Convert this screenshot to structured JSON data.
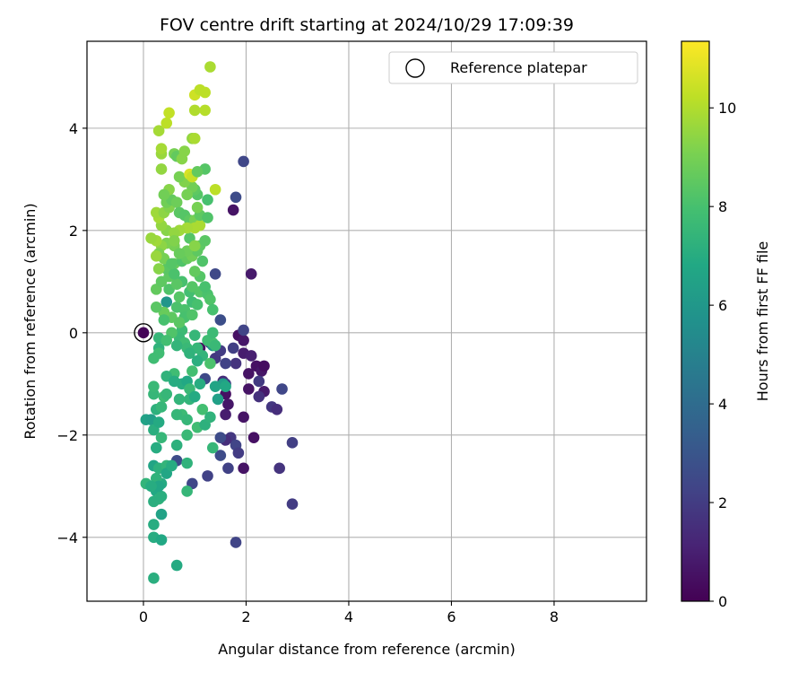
{
  "chart_data": {
    "type": "scatter",
    "title": "FOV centre drift starting at 2024/10/29 17:09:39",
    "xlabel": "Angular distance from reference (arcmin)",
    "ylabel": "Rotation from reference (arcmin)",
    "xlim": [
      -1.1,
      9.8
    ],
    "ylim": [
      -5.25,
      5.7
    ],
    "xticks": [
      0,
      2,
      4,
      6,
      8
    ],
    "yticks": [
      -4,
      -2,
      0,
      2,
      4
    ],
    "grid": true,
    "colorbar": {
      "label": "Hours from first FF file",
      "colormap": "viridis",
      "range": [
        0,
        11.35
      ],
      "ticks": [
        0,
        2,
        4,
        6,
        8,
        10
      ]
    },
    "legend": {
      "position": "top-right",
      "entries": [
        {
          "label": "Reference platepar",
          "marker": "open-circle"
        }
      ]
    },
    "reference_point": {
      "x": 0,
      "y": 0
    },
    "points": [
      [
        0.0,
        0.0,
        0.1
      ],
      [
        1.75,
        2.4,
        0.6
      ],
      [
        2.1,
        1.15,
        0.8
      ],
      [
        1.85,
        -0.05,
        0.5
      ],
      [
        1.95,
        -0.15,
        0.7
      ],
      [
        1.95,
        -0.4,
        0.9
      ],
      [
        2.1,
        -0.45,
        1.0
      ],
      [
        2.05,
        -0.8,
        0.6
      ],
      [
        2.2,
        -0.65,
        0.5
      ],
      [
        2.3,
        -0.75,
        0.7
      ],
      [
        2.35,
        -0.65,
        0.4
      ],
      [
        2.05,
        -1.1,
        0.6
      ],
      [
        2.35,
        -1.15,
        0.8
      ],
      [
        1.6,
        -1.2,
        0.5
      ],
      [
        1.65,
        -1.4,
        0.7
      ],
      [
        1.95,
        -1.65,
        0.6
      ],
      [
        2.15,
        -2.05,
        0.5
      ],
      [
        1.95,
        -2.65,
        0.6
      ],
      [
        1.6,
        -1.6,
        0.9
      ],
      [
        1.1,
        -0.3,
        0.4
      ],
      [
        1.3,
        -0.2,
        1.5
      ],
      [
        1.4,
        -0.5,
        1.8
      ],
      [
        1.5,
        -0.35,
        2.0
      ],
      [
        1.75,
        -0.3,
        2.1
      ],
      [
        1.8,
        -0.6,
        1.7
      ],
      [
        1.6,
        -0.6,
        2.2
      ],
      [
        1.55,
        -0.95,
        1.4
      ],
      [
        1.2,
        -0.9,
        2.5
      ],
      [
        1.6,
        -1.0,
        2.0
      ],
      [
        2.25,
        -1.25,
        1.6
      ],
      [
        2.5,
        -1.45,
        1.8
      ],
      [
        2.6,
        -1.5,
        1.5
      ],
      [
        2.7,
        -1.1,
        2.4
      ],
      [
        1.7,
        -2.05,
        1.8
      ],
      [
        1.6,
        -2.1,
        1.5
      ],
      [
        1.8,
        -2.2,
        2.3
      ],
      [
        1.5,
        -2.4,
        2.6
      ],
      [
        1.65,
        -2.65,
        2.2
      ],
      [
        1.85,
        -2.35,
        2.0
      ],
      [
        1.25,
        -2.8,
        2.2
      ],
      [
        0.95,
        -2.95,
        2.4
      ],
      [
        2.9,
        -2.15,
        2.1
      ],
      [
        2.9,
        -3.35,
        2.0
      ],
      [
        2.65,
        -2.65,
        1.7
      ],
      [
        1.8,
        -4.1,
        2.3
      ],
      [
        0.65,
        -2.5,
        2.6
      ],
      [
        1.4,
        1.15,
        2.5
      ],
      [
        1.95,
        3.35,
        2.4
      ],
      [
        1.8,
        2.65,
        2.6
      ],
      [
        1.5,
        0.25,
        2.7
      ],
      [
        1.95,
        0.05,
        2.3
      ],
      [
        1.5,
        -2.05,
        2.6
      ],
      [
        2.25,
        -0.95,
        1.9
      ],
      [
        1.35,
        -0.25,
        5.8
      ],
      [
        1.55,
        -1.0,
        6.3
      ],
      [
        0.45,
        0.6,
        5.9
      ],
      [
        0.05,
        -1.7,
        6.5
      ],
      [
        0.15,
        -1.7,
        6.3
      ],
      [
        0.2,
        -1.9,
        7.1
      ],
      [
        0.25,
        -2.25,
        7.0
      ],
      [
        0.2,
        -2.6,
        6.6
      ],
      [
        0.3,
        -2.65,
        7.2
      ],
      [
        0.35,
        -2.95,
        6.9
      ],
      [
        0.25,
        -3.1,
        6.8
      ],
      [
        0.3,
        -3.25,
        7.3
      ],
      [
        0.2,
        -3.3,
        7.1
      ],
      [
        0.35,
        -3.55,
        6.5
      ],
      [
        0.2,
        -3.75,
        7.0
      ],
      [
        0.2,
        -4.0,
        7.0
      ],
      [
        0.35,
        -4.05,
        6.8
      ],
      [
        0.2,
        -4.8,
        7.1
      ],
      [
        0.65,
        -4.55,
        6.9
      ],
      [
        0.45,
        -2.6,
        7.4
      ],
      [
        0.65,
        -2.2,
        7.2
      ],
      [
        0.85,
        -2.55,
        7.3
      ],
      [
        0.35,
        -2.05,
        7.5
      ],
      [
        0.3,
        -1.75,
        6.9
      ],
      [
        0.25,
        -1.5,
        7.2
      ],
      [
        0.35,
        -1.45,
        7.5
      ],
      [
        0.2,
        -1.2,
        7.5
      ],
      [
        0.2,
        -1.05,
        7.6
      ],
      [
        0.4,
        -1.25,
        7.7
      ],
      [
        0.45,
        -1.2,
        7.5
      ],
      [
        0.6,
        -0.8,
        7.8
      ],
      [
        0.75,
        -1.0,
        7.0
      ],
      [
        0.85,
        -0.95,
        6.8
      ],
      [
        0.9,
        -1.1,
        7.6
      ],
      [
        0.95,
        -0.75,
        7.9
      ],
      [
        0.9,
        -1.3,
        7.4
      ],
      [
        0.75,
        -1.6,
        7.7
      ],
      [
        0.65,
        -1.6,
        7.5
      ],
      [
        0.85,
        -1.7,
        7.5
      ],
      [
        1.05,
        -1.85,
        7.8
      ],
      [
        1.15,
        -1.5,
        7.9
      ],
      [
        0.85,
        -2.0,
        7.6
      ],
      [
        1.2,
        -1.8,
        7.2
      ],
      [
        1.3,
        -1.65,
        7.3
      ],
      [
        1.35,
        -2.25,
        7.5
      ],
      [
        0.85,
        -3.1,
        7.5
      ],
      [
        0.05,
        -2.95,
        7.4
      ],
      [
        0.3,
        -0.1,
        7.5
      ],
      [
        0.3,
        -0.3,
        7.3
      ],
      [
        0.3,
        -0.4,
        7.8
      ],
      [
        0.2,
        -0.5,
        7.8
      ],
      [
        0.75,
        0.05,
        7.7
      ],
      [
        0.7,
        -0.1,
        7.6
      ],
      [
        0.8,
        -0.2,
        7.8
      ],
      [
        0.85,
        -0.3,
        7.6
      ],
      [
        1.0,
        -0.05,
        7.5
      ],
      [
        1.15,
        -0.45,
        7.4
      ],
      [
        1.3,
        -0.6,
        8.1
      ],
      [
        1.35,
        -0.2,
        8.0
      ],
      [
        1.25,
        -0.15,
        7.8
      ],
      [
        1.05,
        -0.3,
        7.5
      ],
      [
        0.55,
        0.3,
        8.5
      ],
      [
        0.65,
        0.5,
        8.1
      ],
      [
        0.7,
        0.7,
        8.3
      ],
      [
        0.5,
        0.85,
        8.2
      ],
      [
        0.4,
        0.4,
        8.7
      ],
      [
        0.25,
        0.5,
        8.4
      ],
      [
        0.25,
        0.85,
        8.6
      ],
      [
        0.35,
        1.0,
        8.5
      ],
      [
        0.5,
        1.1,
        8.5
      ],
      [
        0.45,
        1.25,
        8.4
      ],
      [
        0.6,
        1.35,
        8.7
      ],
      [
        0.75,
        1.4,
        8.2
      ],
      [
        0.85,
        1.45,
        8.6
      ],
      [
        0.95,
        1.5,
        8.9
      ],
      [
        0.75,
        1.0,
        8.0
      ],
      [
        0.9,
        0.8,
        7.9
      ],
      [
        0.95,
        0.9,
        8.3
      ],
      [
        0.95,
        0.6,
        7.8
      ],
      [
        0.8,
        0.45,
        8.1
      ],
      [
        0.8,
        0.3,
        8.0
      ],
      [
        0.7,
        0.2,
        8.4
      ],
      [
        0.95,
        0.35,
        8.2
      ],
      [
        1.05,
        0.55,
        8.0
      ],
      [
        1.1,
        0.8,
        8.3
      ],
      [
        1.25,
        0.75,
        8.1
      ],
      [
        1.3,
        0.65,
        8.2
      ],
      [
        1.35,
        0.45,
        8.0
      ],
      [
        1.2,
        0.9,
        8.0
      ],
      [
        1.1,
        1.1,
        8.3
      ],
      [
        1.0,
        1.2,
        8.6
      ],
      [
        1.15,
        1.4,
        8.2
      ],
      [
        1.05,
        1.6,
        8.5
      ],
      [
        1.1,
        1.7,
        8.5
      ],
      [
        1.2,
        1.8,
        8.4
      ],
      [
        0.9,
        1.85,
        8.3
      ],
      [
        0.85,
        1.6,
        8.8
      ],
      [
        0.6,
        1.7,
        9.0
      ],
      [
        0.45,
        1.75,
        9.1
      ],
      [
        0.35,
        1.7,
        9.4
      ],
      [
        0.25,
        1.8,
        9.7
      ],
      [
        0.15,
        1.85,
        9.6
      ],
      [
        0.3,
        1.55,
        9.1
      ],
      [
        0.4,
        1.45,
        9.0
      ],
      [
        0.3,
        1.25,
        9.3
      ],
      [
        0.25,
        1.5,
        9.6
      ],
      [
        0.45,
        2.0,
        9.3
      ],
      [
        0.35,
        2.1,
        9.5
      ],
      [
        0.3,
        2.25,
        9.8
      ],
      [
        0.25,
        2.35,
        9.7
      ],
      [
        0.4,
        2.35,
        9.4
      ],
      [
        0.5,
        2.45,
        9.2
      ],
      [
        0.45,
        2.55,
        8.9
      ],
      [
        0.55,
        2.6,
        8.6
      ],
      [
        0.65,
        2.55,
        8.8
      ],
      [
        0.7,
        2.35,
        8.4
      ],
      [
        0.8,
        2.3,
        8.3
      ],
      [
        0.9,
        2.2,
        8.5
      ],
      [
        1.0,
        2.2,
        9.0
      ],
      [
        1.0,
        2.05,
        9.9
      ],
      [
        1.1,
        2.1,
        9.9
      ],
      [
        0.85,
        2.05,
        9.8
      ],
      [
        0.7,
        2.0,
        9.7
      ],
      [
        0.6,
        1.95,
        9.5
      ],
      [
        0.6,
        1.8,
        9.2
      ],
      [
        1.1,
        2.3,
        8.5
      ],
      [
        1.25,
        2.25,
        8.2
      ],
      [
        1.25,
        2.6,
        8.0
      ],
      [
        1.05,
        2.7,
        8.3
      ],
      [
        1.0,
        2.8,
        8.5
      ],
      [
        0.95,
        2.85,
        8.9
      ],
      [
        0.85,
        2.7,
        9.0
      ],
      [
        0.8,
        2.95,
        9.2
      ],
      [
        0.7,
        3.05,
        9.0
      ],
      [
        0.5,
        2.8,
        9.3
      ],
      [
        0.35,
        3.2,
        9.5
      ],
      [
        0.35,
        3.5,
        9.6
      ],
      [
        0.35,
        3.6,
        9.8
      ],
      [
        0.6,
        3.5,
        9.0
      ],
      [
        0.65,
        3.45,
        8.6
      ],
      [
        0.75,
        3.4,
        9.3
      ],
      [
        0.9,
        3.1,
        10.7
      ],
      [
        0.95,
        3.05,
        10.4
      ],
      [
        1.2,
        3.2,
        8.3
      ],
      [
        1.05,
        3.15,
        8.6
      ],
      [
        0.8,
        3.55,
        9.3
      ],
      [
        0.95,
        3.8,
        9.5
      ],
      [
        1.0,
        3.8,
        9.9
      ],
      [
        1.4,
        2.8,
        10.2
      ],
      [
        0.3,
        3.95,
        9.8
      ],
      [
        0.45,
        4.1,
        10.2
      ],
      [
        0.5,
        4.3,
        10.3
      ],
      [
        1.0,
        4.35,
        10.0
      ],
      [
        1.2,
        4.35,
        10.1
      ],
      [
        1.0,
        4.65,
        10.5
      ],
      [
        1.1,
        4.75,
        10.2
      ],
      [
        1.2,
        4.7,
        10.2
      ],
      [
        1.3,
        5.2,
        9.9
      ],
      [
        0.65,
        0.95,
        8.4
      ],
      [
        0.6,
        1.15,
        8.1
      ],
      [
        0.55,
        1.35,
        8.3
      ],
      [
        1.0,
        1.7,
        9.3
      ],
      [
        1.05,
        2.45,
        9.0
      ],
      [
        0.7,
        1.55,
        8.7
      ],
      [
        0.4,
        2.7,
        8.9
      ],
      [
        0.55,
        0.0,
        8.2
      ],
      [
        0.45,
        -0.15,
        7.9
      ],
      [
        0.4,
        0.25,
        8.0
      ],
      [
        1.35,
        0.0,
        7.7
      ],
      [
        1.4,
        -0.25,
        7.6
      ],
      [
        0.65,
        -0.25,
        7.4
      ],
      [
        0.9,
        -0.4,
        7.3
      ],
      [
        1.05,
        -0.55,
        7.1
      ],
      [
        0.45,
        -0.85,
        7.3
      ],
      [
        0.6,
        -0.95,
        7.0
      ],
      [
        0.7,
        -1.3,
        7.4
      ],
      [
        1.1,
        -1.0,
        7.0
      ],
      [
        1.0,
        -1.25,
        6.9
      ],
      [
        1.4,
        -1.05,
        6.6
      ],
      [
        1.45,
        -1.3,
        6.4
      ],
      [
        1.6,
        -1.05,
        6.8
      ],
      [
        0.45,
        -2.75,
        6.7
      ],
      [
        0.55,
        -2.6,
        7.0
      ],
      [
        0.25,
        -2.85,
        7.3
      ],
      [
        0.35,
        -3.2,
        7.1
      ],
      [
        0.3,
        -3.0,
        6.7
      ],
      [
        0.15,
        -3.0,
        7.0
      ]
    ]
  }
}
